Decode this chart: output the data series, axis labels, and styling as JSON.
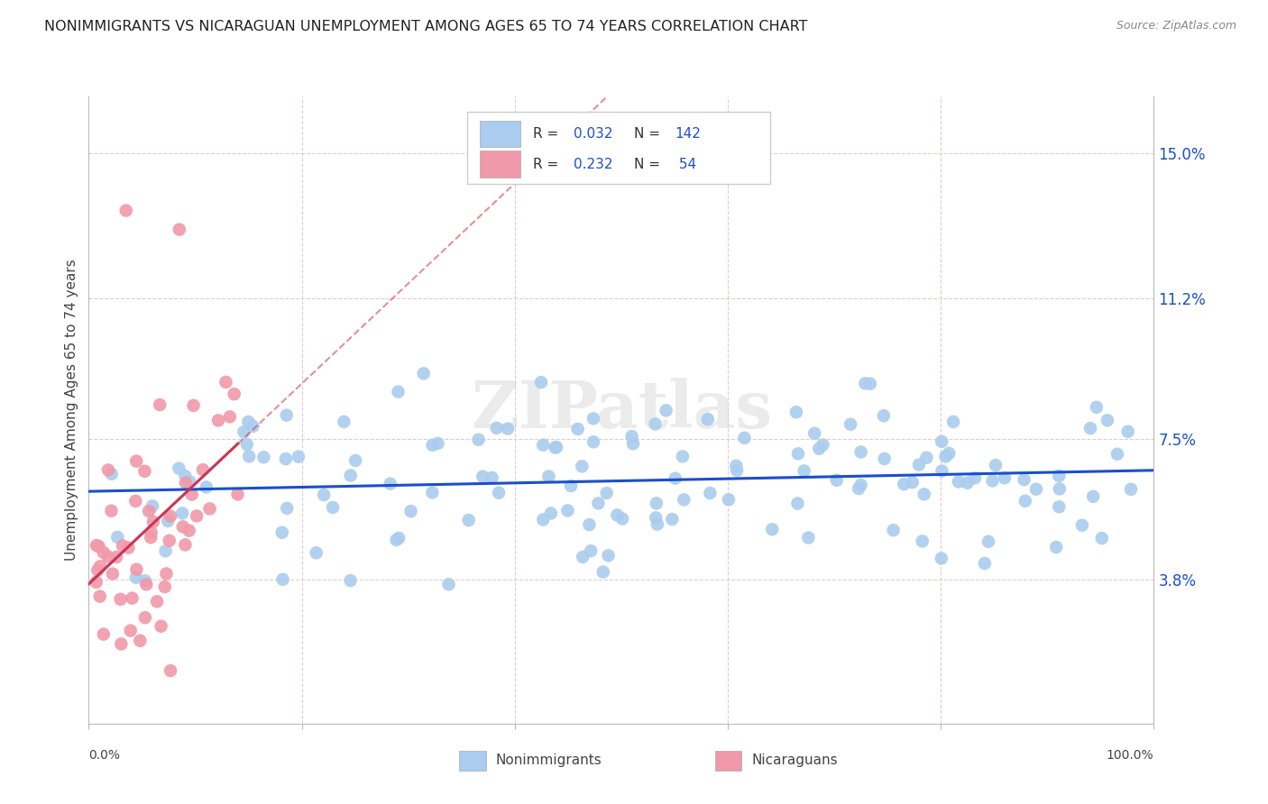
{
  "title": "NONIMMIGRANTS VS NICARAGUAN UNEMPLOYMENT AMONG AGES 65 TO 74 YEARS CORRELATION CHART",
  "source": "Source: ZipAtlas.com",
  "ylabel": "Unemployment Among Ages 65 to 74 years",
  "ytick_values": [
    3.8,
    7.5,
    11.2,
    15.0
  ],
  "legend_blue_r": "0.032",
  "legend_blue_n": "142",
  "legend_pink_r": "0.232",
  "legend_pink_n": "54",
  "legend_blue_label": "Nonimmigrants",
  "legend_pink_label": "Nicaraguans",
  "blue_line_color": "#1a4fcc",
  "pink_line_color": "#cc3355",
  "blue_scatter_color": "#aaccee",
  "pink_scatter_color": "#f099aa",
  "watermark": "ZIPatlas",
  "xmin": 0,
  "xmax": 100,
  "ymin": 0,
  "ymax": 16.5,
  "background_color": "#ffffff"
}
